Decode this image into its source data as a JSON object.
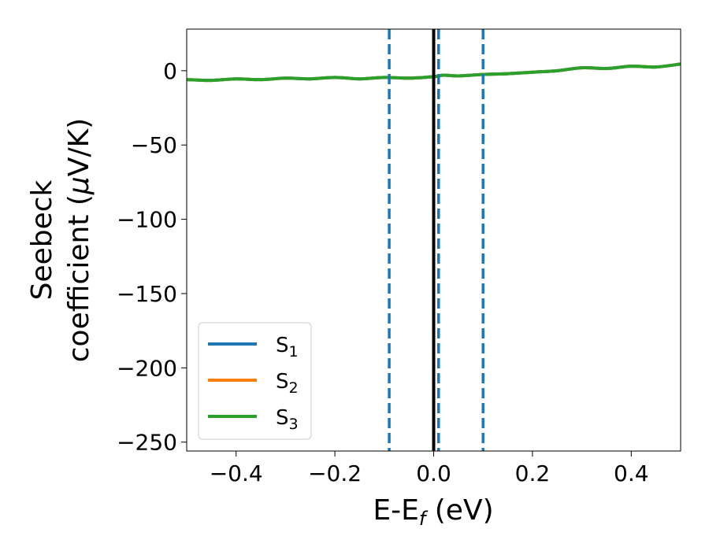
{
  "chart_data": {
    "type": "line",
    "xlabel": "E-E",
    "xlabel_sub": "f",
    "xlabel_unit": " (eV)",
    "ylabel_line1": "Seebeck",
    "ylabel_line2": "coefficient  (",
    "ylabel_mu": "μ",
    "ylabel_unit": "V/K)",
    "xlim": [
      -0.5,
      0.5
    ],
    "ylim": [
      -256,
      28
    ],
    "xticks": [
      -0.4,
      -0.2,
      0.0,
      0.2,
      0.4
    ],
    "xtick_labels": [
      "−0.4",
      "−0.2",
      "0.0",
      "0.2",
      "0.4"
    ],
    "yticks": [
      0,
      -50,
      -100,
      -150,
      -200,
      -250
    ],
    "ytick_labels": [
      "0",
      "−50",
      "−100",
      "−150",
      "−200",
      "−250"
    ],
    "legend_position": "lower-left",
    "series": [
      {
        "name": "S",
        "name_sub": "1",
        "color": "#1f77b4",
        "x": [
          -0.5,
          -0.45,
          -0.4,
          -0.35,
          -0.3,
          -0.25,
          -0.2,
          -0.15,
          -0.1,
          -0.05,
          0.0,
          0.02,
          0.05,
          0.1,
          0.15,
          0.2,
          0.25,
          0.3,
          0.35,
          0.4,
          0.45,
          0.5
        ],
        "y": [
          -6,
          -6.5,
          -5.5,
          -6,
          -5,
          -5.5,
          -4.5,
          -5.5,
          -4.5,
          -5,
          -4,
          -3,
          -3.5,
          -2.5,
          -2,
          -1,
          0,
          2,
          1.5,
          3,
          2.5,
          4.5
        ]
      },
      {
        "name": "S",
        "name_sub": "2",
        "color": "#ff7f0e",
        "x": [
          -0.5,
          -0.45,
          -0.4,
          -0.35,
          -0.3,
          -0.25,
          -0.2,
          -0.15,
          -0.1,
          -0.05,
          0.0,
          0.02,
          0.05,
          0.1,
          0.15,
          0.2,
          0.25,
          0.3,
          0.35,
          0.4,
          0.45,
          0.5
        ],
        "y": [
          -6,
          -6.5,
          -5.5,
          -6,
          -5,
          -5.5,
          -4.5,
          -5.5,
          -4.5,
          -5,
          -4,
          -3,
          -3.5,
          -2.5,
          -2,
          -1,
          0,
          2,
          1.5,
          3,
          2.5,
          4.5
        ]
      },
      {
        "name": "S",
        "name_sub": "3",
        "color": "#2ca02c",
        "x": [
          -0.5,
          -0.45,
          -0.4,
          -0.35,
          -0.3,
          -0.25,
          -0.2,
          -0.15,
          -0.1,
          -0.05,
          0.0,
          0.02,
          0.05,
          0.1,
          0.15,
          0.2,
          0.25,
          0.3,
          0.35,
          0.4,
          0.45,
          0.5
        ],
        "y": [
          -6,
          -6.5,
          -5.5,
          -6,
          -5,
          -5.5,
          -4.5,
          -5.5,
          -4.5,
          -5,
          -4,
          -3,
          -3.5,
          -2.5,
          -2,
          -1,
          0,
          2,
          1.5,
          3,
          2.5,
          4.5
        ]
      }
    ],
    "vlines": [
      {
        "x": -0.09,
        "style": "dashed",
        "color": "#1f77b4"
      },
      {
        "x": 0.0,
        "style": "solid",
        "color": "#000000"
      },
      {
        "x": 0.01,
        "style": "dashed",
        "color": "#1f77b4"
      },
      {
        "x": 0.1,
        "style": "dashed",
        "color": "#1f77b4"
      }
    ]
  }
}
